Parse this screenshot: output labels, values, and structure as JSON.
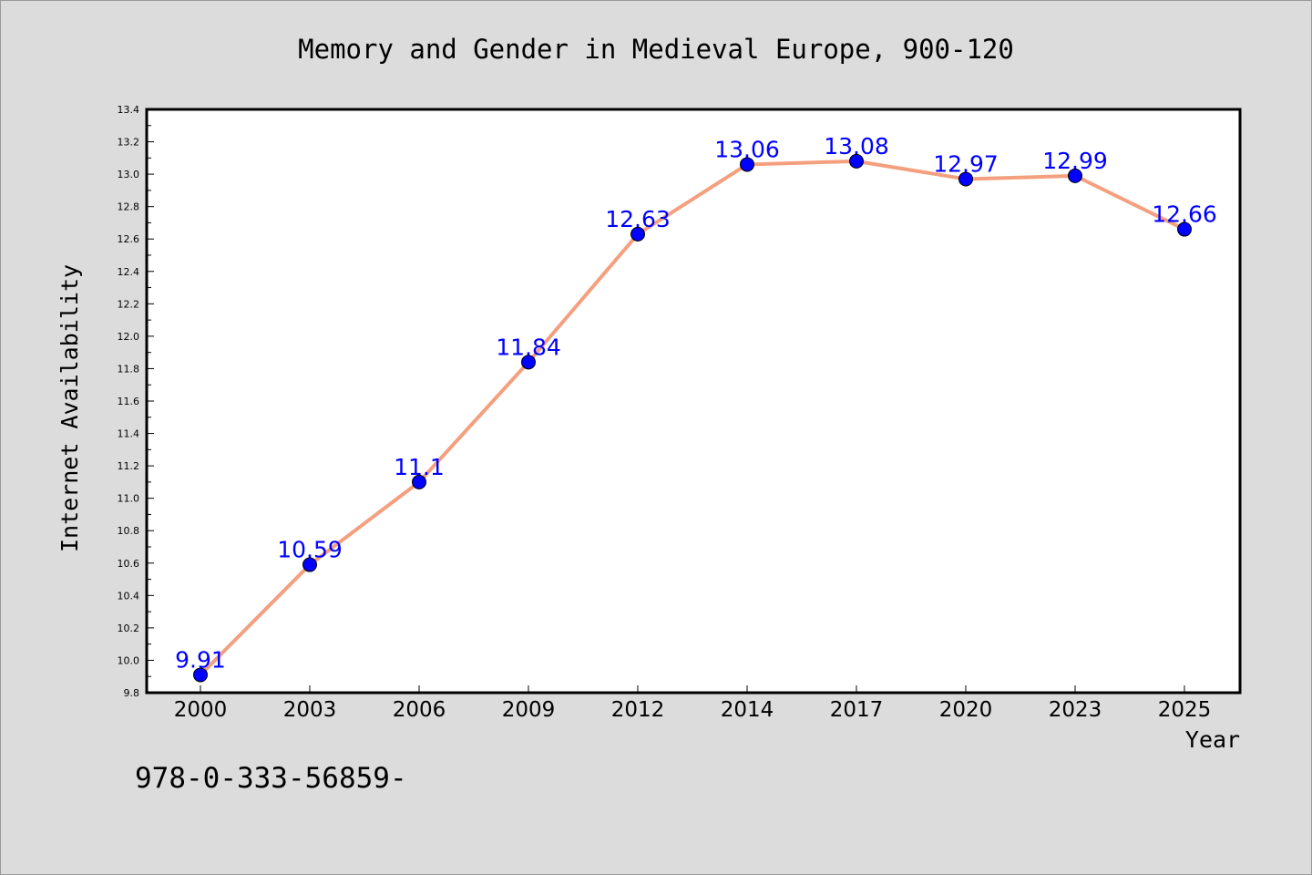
{
  "chart_data": {
    "type": "line",
    "title": "Memory and Gender in Medieval Europe, 900-120",
    "xlabel": "Year",
    "ylabel": "Internet Availability",
    "categories": [
      "2000",
      "2003",
      "2006",
      "2009",
      "2012",
      "2014",
      "2017",
      "2020",
      "2023",
      "2025"
    ],
    "series": [
      {
        "values": [
          9.91,
          10.59,
          11.1,
          11.84,
          12.63,
          13.06,
          13.08,
          12.97,
          12.99,
          12.66
        ],
        "data_labels": [
          "9.91",
          "10.59",
          "11.1",
          "11.84",
          "12.63",
          "13.06",
          "13.08",
          "12.97",
          "12.99",
          "12.66"
        ],
        "line_color": "#f4a07f",
        "marker_color": "#0000ff"
      }
    ],
    "ylim": [
      9.8,
      13.4
    ],
    "yticks": [
      "9.8",
      "10.0",
      "10.2",
      "10.4",
      "10.6",
      "10.8",
      "11.0",
      "11.2",
      "11.4",
      "11.6",
      "11.8",
      "12.0",
      "12.2",
      "12.4",
      "12.6",
      "12.8",
      "13.0",
      "13.2",
      "13.4"
    ],
    "grid": false,
    "legend": "none"
  },
  "footnote": "978-0-333-56859-",
  "colors": {
    "background": "#dcdcdc",
    "plot_area": "#ffffff",
    "data_label": "#0000ff"
  }
}
